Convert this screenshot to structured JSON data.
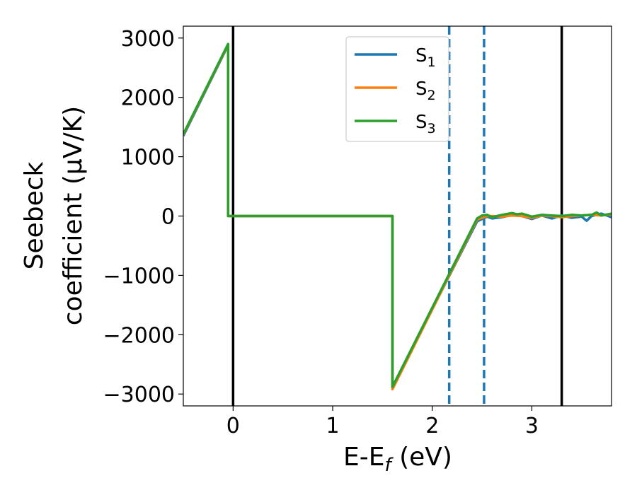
{
  "chart_data": {
    "type": "line",
    "xlabel": "E-E_f (eV)",
    "xlabel_parts": {
      "main": "E-E",
      "sub": "f",
      "unit": " (eV)"
    },
    "ylabel_lines": [
      "Seebeck",
      "coefficient  (μV/K)"
    ],
    "xlim": [
      -0.5,
      3.8
    ],
    "ylim": [
      -3200,
      3200
    ],
    "xticks": [
      0,
      1,
      2,
      3
    ],
    "xtick_labels": [
      "0",
      "1",
      "2",
      "3"
    ],
    "yticks": [
      3000,
      2000,
      1000,
      0,
      -1000,
      -2000,
      -3000
    ],
    "ytick_labels": [
      "3000",
      "2000",
      "1000",
      "0",
      "−1000",
      "−2000",
      "−3000"
    ],
    "grid": false,
    "legend_position": "upper-center",
    "series": [
      {
        "name": "S_1",
        "label_main": "S",
        "label_sub": "1",
        "color": "#1f77b4",
        "x": [
          -0.5,
          -0.05,
          -0.05,
          1.6,
          1.6,
          2.45,
          2.55,
          2.6,
          2.7,
          2.8,
          2.9,
          3.0,
          3.1,
          3.2,
          3.3,
          3.4,
          3.5,
          3.55,
          3.6,
          3.7,
          3.8
        ],
        "y": [
          1350,
          2880,
          0,
          0,
          -2880,
          -90,
          -10,
          -40,
          -20,
          20,
          0,
          -50,
          10,
          -40,
          10,
          -30,
          -10,
          -80,
          0,
          40,
          -20
        ]
      },
      {
        "name": "S_2",
        "label_main": "S",
        "label_sub": "2",
        "color": "#ff7f0e",
        "x": [
          -0.5,
          -0.05,
          -0.05,
          1.6,
          1.6,
          2.45,
          2.55,
          2.6,
          2.7,
          2.8,
          2.9,
          3.0,
          3.1,
          3.2,
          3.3,
          3.4,
          3.5,
          3.6,
          3.7,
          3.8
        ],
        "y": [
          1370,
          2890,
          0,
          0,
          -2920,
          -60,
          0,
          0,
          -10,
          10,
          0,
          -30,
          10,
          0,
          -20,
          0,
          10,
          20,
          10,
          30
        ]
      },
      {
        "name": "S_3",
        "label_main": "S",
        "label_sub": "3",
        "color": "#2ca02c",
        "x": [
          -0.5,
          -0.05,
          -0.05,
          1.6,
          1.6,
          2.45,
          2.5,
          2.55,
          2.6,
          2.7,
          2.8,
          2.85,
          2.9,
          3.0,
          3.1,
          3.2,
          3.3,
          3.4,
          3.5,
          3.6,
          3.65,
          3.7,
          3.8
        ],
        "y": [
          1380,
          2900,
          0,
          0,
          -2880,
          -40,
          10,
          20,
          -20,
          20,
          50,
          30,
          40,
          -10,
          20,
          10,
          0,
          20,
          10,
          20,
          60,
          10,
          40
        ]
      }
    ],
    "vertical_lines": [
      {
        "x": 0.0,
        "style": "solid",
        "color": "#000000"
      },
      {
        "x": 3.3,
        "style": "solid",
        "color": "#000000"
      },
      {
        "x": 2.17,
        "style": "dashed",
        "color": "#1f77b4"
      },
      {
        "x": 2.52,
        "style": "dashed",
        "color": "#1f77b4"
      }
    ]
  }
}
